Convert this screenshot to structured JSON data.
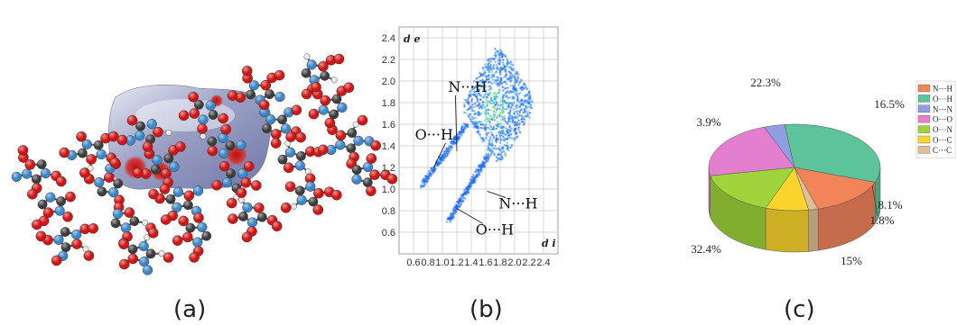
{
  "captions": {
    "a": "(a)",
    "b": "(b)",
    "c": "(c)"
  },
  "colors": {
    "atom_c": "#3c3c3c",
    "atom_o": "#d01515",
    "atom_n": "#3b86c9",
    "atom_h": "#e8e8e8",
    "surface": "#9ea4c2",
    "surface_light": "#dfe3ef",
    "surface_hot": "#c01818"
  },
  "chart_data": [
    {
      "type": "scatter",
      "subtype": "2d-fingerprint-density",
      "xlabel": "d i",
      "ylabel": "d e",
      "xlim": [
        0.4,
        2.6
      ],
      "ylim": [
        0.4,
        2.5
      ],
      "xticks": [
        "0.6",
        "0.8",
        "1.0",
        "1.2",
        "1.4",
        "1.6",
        "1.8",
        "2.0",
        "2.2",
        "2.4"
      ],
      "yticks": [
        "0.6",
        "0.8",
        "1.0",
        "1.2",
        "1.4",
        "1.6",
        "1.8",
        "2.0",
        "2.2",
        "2.4"
      ],
      "grid": true,
      "annotations": [
        {
          "text": "N···H",
          "x": 1.08,
          "y": 1.9,
          "point_x": 1.2,
          "point_y": 1.35
        },
        {
          "text": "O···H",
          "x": 0.62,
          "y": 1.46,
          "point_x": 0.88,
          "point_y": 1.2
        },
        {
          "text": "N···H",
          "x": 1.78,
          "y": 0.82,
          "point_x": 1.62,
          "point_y": 0.98
        },
        {
          "text": "O···H",
          "x": 1.46,
          "y": 0.58,
          "point_x": 1.2,
          "point_y": 0.82
        }
      ]
    },
    {
      "type": "pie",
      "style": "3d",
      "slices": [
        {
          "name": "N···H",
          "value": 15,
          "label": "15%",
          "color": "#f2845a"
        },
        {
          "name": "O···H",
          "value": 32.4,
          "label": "32.4%",
          "color": "#5cc39a"
        },
        {
          "name": "N···N",
          "value": 3.9,
          "label": "3.9%",
          "color": "#8e9ee0"
        },
        {
          "name": "O···O",
          "value": 22.3,
          "label": "22.3%",
          "color": "#e47fd0"
        },
        {
          "name": "O···N",
          "value": 16.5,
          "label": "16.5%",
          "color": "#9fd43b"
        },
        {
          "name": "O···C",
          "value": 8.1,
          "label": "8.1%",
          "color": "#fbd52b"
        },
        {
          "name": "C···C",
          "value": 1.8,
          "label": "1.8%",
          "color": "#e0bf98"
        }
      ],
      "legend": "right"
    }
  ]
}
